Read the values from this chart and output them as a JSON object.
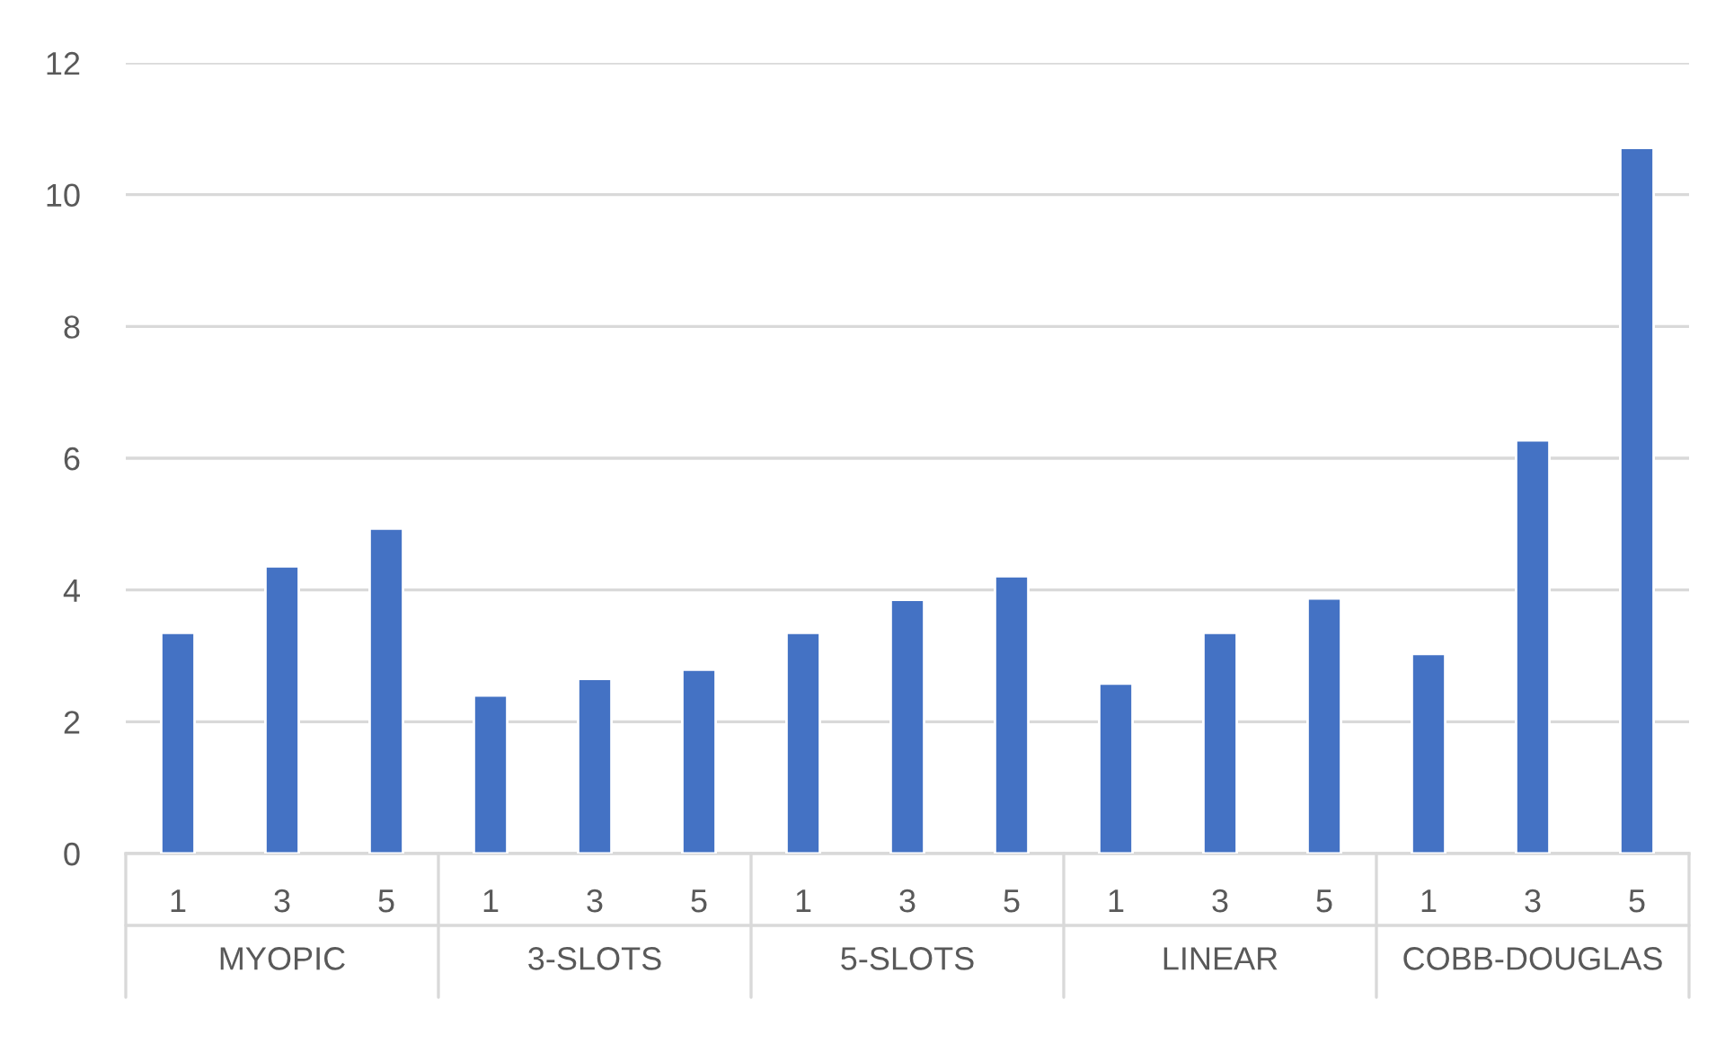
{
  "chart_data": {
    "type": "bar",
    "categories": [
      "1",
      "3",
      "5",
      "1",
      "3",
      "5",
      "1",
      "3",
      "5",
      "1",
      "3",
      "5",
      "1",
      "3",
      "5"
    ],
    "values": [
      3.35,
      4.36,
      4.93,
      2.4,
      2.65,
      2.79,
      3.35,
      3.85,
      4.21,
      2.58,
      3.35,
      3.87,
      3.03,
      6.27,
      10.71
    ],
    "color": "#4472c4",
    "ylim": [
      0,
      12
    ],
    "yticks": [
      0,
      2,
      4,
      6,
      8,
      10,
      12
    ],
    "grid": "y",
    "legend": false,
    "annotations": [
      "MYOPIC",
      "3-SLOTS",
      "5-SLOTS",
      "LINEAR",
      "COBB-DOUGLAS"
    ]
  }
}
